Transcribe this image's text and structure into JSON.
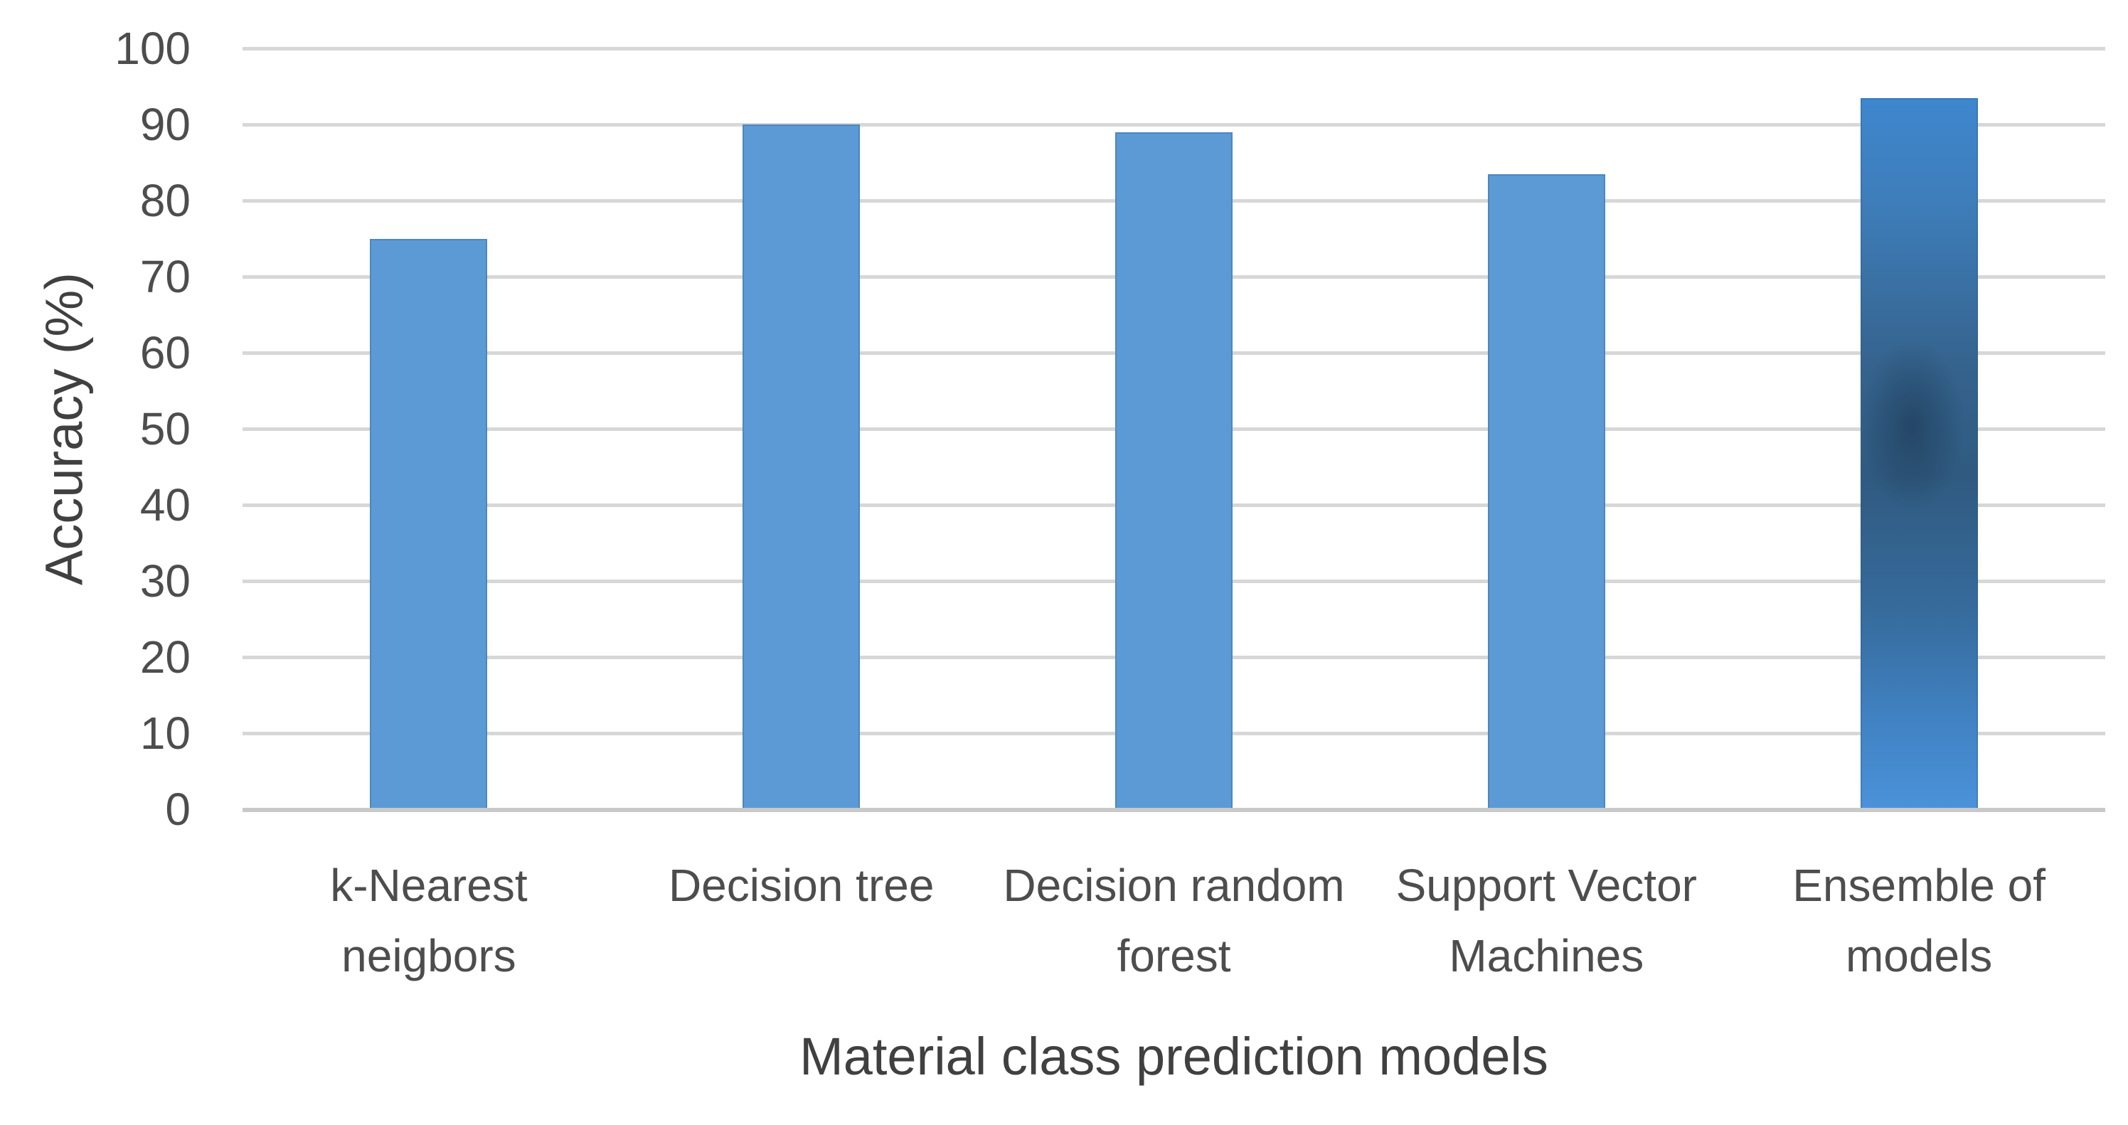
{
  "chart_data": {
    "type": "bar",
    "title": "",
    "xlabel": "Material class prediction models",
    "ylabel": "Accuracy (%)",
    "categories": [
      "k-Nearest neigbors",
      "Decision tree",
      "Decision random forest",
      "Support Vector Machines",
      "Ensemble of models"
    ],
    "values": [
      75,
      90,
      89,
      83.5,
      93.5
    ],
    "series": [
      {
        "name": "Accuracy",
        "values": [
          75,
          90,
          89,
          83.5,
          93.5
        ]
      }
    ],
    "ylim": [
      0,
      100
    ],
    "ytick_step": 10,
    "yticks": [
      0,
      10,
      20,
      30,
      40,
      50,
      60,
      70,
      80,
      90,
      100
    ],
    "grid": "horizontal",
    "legend": "none",
    "notes": "last bar (Ensemble of models) rendered with dark smudged gradient; others solid blue",
    "colors": {
      "bar": "#5b9ad5",
      "ensemble_dark": "#305a80",
      "gridline": "#d7d7d7",
      "axis_line": "#c9c9c9",
      "tick_text": "#4d4d4d",
      "title_text": "#404040",
      "background": "#ffffff"
    }
  }
}
